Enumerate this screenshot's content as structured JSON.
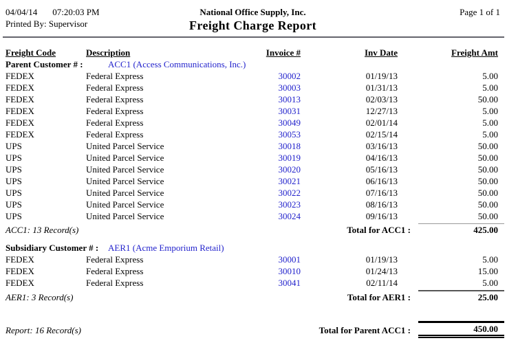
{
  "page": {
    "printed_date": "04/04/14",
    "printed_time": "07:20:03 PM",
    "printed_by_label": "Printed By:",
    "printed_by": "Supervisor",
    "company": "National Office Supply, Inc.",
    "title": "Freight Charge Report",
    "page_info": "Page 1 of 1"
  },
  "table": {
    "headers": [
      "Freight Code",
      "Description",
      "Invoice #",
      "Inv Date",
      "Freight Amt"
    ]
  },
  "groups": [
    {
      "type_label": "Parent Customer # :",
      "customer": "ACC1 (Access Communications, Inc.)",
      "rows": [
        {
          "code": "FEDEX",
          "description": "Federal Express",
          "invoice": "30002",
          "date": "01/19/13",
          "amount": "5.00"
        },
        {
          "code": "FEDEX",
          "description": "Federal Express",
          "invoice": "30003",
          "date": "01/31/13",
          "amount": "5.00"
        },
        {
          "code": "FEDEX",
          "description": "Federal Express",
          "invoice": "30013",
          "date": "02/03/13",
          "amount": "50.00"
        },
        {
          "code": "FEDEX",
          "description": "Federal Express",
          "invoice": "30031",
          "date": "12/27/13",
          "amount": "5.00"
        },
        {
          "code": "FEDEX",
          "description": "Federal Express",
          "invoice": "30049",
          "date": "02/01/14",
          "amount": "5.00"
        },
        {
          "code": "FEDEX",
          "description": "Federal Express",
          "invoice": "30053",
          "date": "02/15/14",
          "amount": "5.00"
        },
        {
          "code": "UPS",
          "description": "United Parcel Service",
          "invoice": "30018",
          "date": "03/16/13",
          "amount": "50.00"
        },
        {
          "code": "UPS",
          "description": "United Parcel Service",
          "invoice": "30019",
          "date": "04/16/13",
          "amount": "50.00"
        },
        {
          "code": "UPS",
          "description": "United Parcel Service",
          "invoice": "30020",
          "date": "05/16/13",
          "amount": "50.00"
        },
        {
          "code": "UPS",
          "description": "United Parcel Service",
          "invoice": "30021",
          "date": "06/16/13",
          "amount": "50.00"
        },
        {
          "code": "UPS",
          "description": "United Parcel Service",
          "invoice": "30022",
          "date": "07/16/13",
          "amount": "50.00"
        },
        {
          "code": "UPS",
          "description": "United Parcel Service",
          "invoice": "30023",
          "date": "08/16/13",
          "amount": "50.00"
        },
        {
          "code": "UPS",
          "description": "United Parcel Service",
          "invoice": "30024",
          "date": "09/16/13",
          "amount": "50.00"
        }
      ],
      "record_count": "ACC1: 13 Record(s)",
      "total_label": "Total for ACC1 :",
      "total_amount": "425.00"
    },
    {
      "type_label": "Subsidiary Customer # :",
      "customer": "AER1 (Acme Emporium Retail)",
      "rows": [
        {
          "code": "FEDEX",
          "description": "Federal Express",
          "invoice": "30001",
          "date": "01/19/13",
          "amount": "5.00"
        },
        {
          "code": "FEDEX",
          "description": "Federal Express",
          "invoice": "30010",
          "date": "01/24/13",
          "amount": "15.00"
        },
        {
          "code": "FEDEX",
          "description": "Federal Express",
          "invoice": "30041",
          "date": "02/11/14",
          "amount": "5.00"
        }
      ],
      "record_count": "AER1: 3 Record(s)",
      "total_label": "Total for AER1 :",
      "total_amount": "25.00"
    }
  ],
  "report_summary": {
    "record_count": "Report: 16 Record(s)",
    "total_label": "Total for Parent ACC1 :",
    "total_amount": "450.00"
  },
  "colors": {
    "link_blue": "#2222cc"
  }
}
